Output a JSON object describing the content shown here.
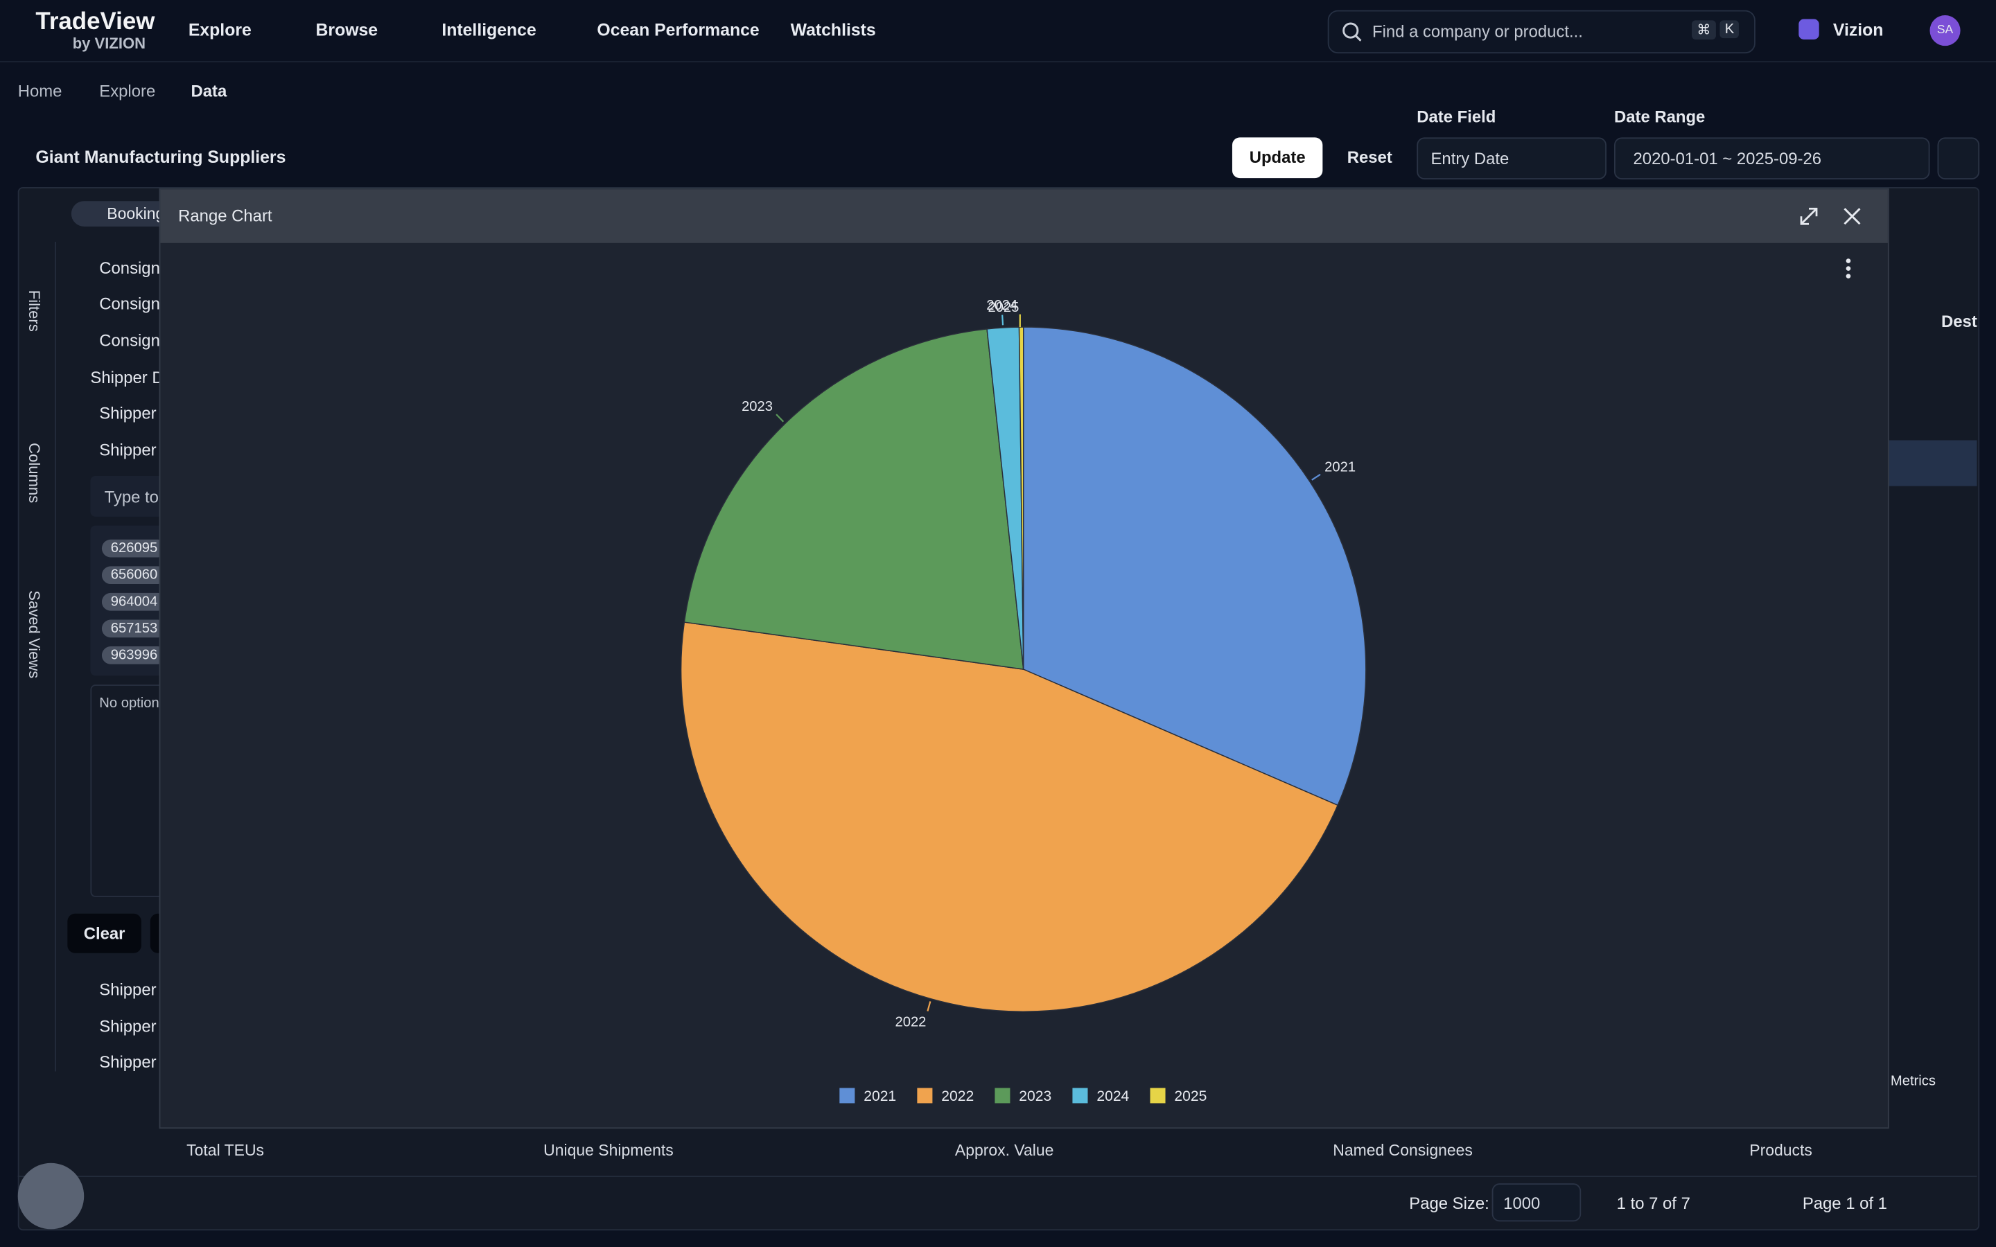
{
  "nav": {
    "brand": "TradeView",
    "brand_sub": "by VIZION",
    "items": [
      "Explore",
      "Browse",
      "Intelligence",
      "Ocean Performance",
      "Watchlists"
    ],
    "search": "Find a company or product...",
    "keys": [
      "⌘",
      "K"
    ],
    "org": "Vizion",
    "avatar": "SA"
  },
  "breadcrumb": [
    "Home",
    "Explore",
    "Data"
  ],
  "toolbar": {
    "view": "Giant Manufacturing Suppliers",
    "update": "Update",
    "reset": "Reset",
    "date_field_label": "Date Field",
    "date_field": "Entry Date",
    "date_range_label": "Date Range",
    "date_range": "2020-01-01 ~ 2025-09-26"
  },
  "grid_bar": {
    "chip": "Booking",
    "column": "Dest",
    "metrics": "e Metrics"
  },
  "side_tabs": [
    "Filters",
    "Columns",
    "Saved Views"
  ],
  "filter_panel": {
    "top_items": [
      "Consign",
      "Consign",
      "Consign"
    ],
    "group": "Shipper D",
    "sub_items": [
      "Shipper",
      "Shipper"
    ],
    "search": "Type to",
    "chips": [
      "626095",
      "656060",
      "964004",
      "657153",
      "963996"
    ],
    "empty": "No option",
    "clear": "Clear",
    "bottom_items": [
      "Shipper",
      "Shipper",
      "Shipper"
    ]
  },
  "stats": [
    "Total TEUs",
    "Unique Shipments",
    "Approx. Value",
    "Named Consignees",
    "Products"
  ],
  "pager": {
    "size_label": "Page Size:",
    "size": "1000",
    "range": "1 to 7 of 7",
    "page": "Page 1 of 1"
  },
  "modal": {
    "title": "Range Chart"
  },
  "chart_data": {
    "type": "pie",
    "categories": [
      "2021",
      "2022",
      "2023",
      "2024",
      "2025"
    ],
    "values": [
      31.5,
      45.7,
      21.1,
      1.5,
      0.2
    ],
    "colors": [
      "#5f8fd6",
      "#f0a34e",
      "#5c9a5a",
      "#5bbcdc",
      "#e6d447"
    ],
    "legend": "bottom"
  }
}
